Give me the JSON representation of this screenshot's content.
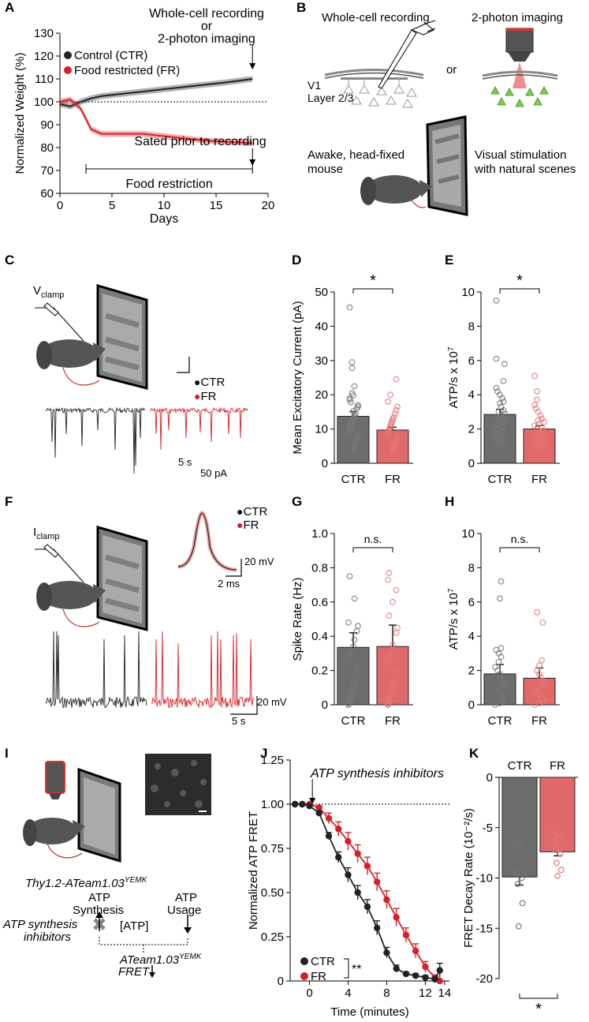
{
  "panels": {
    "A": {
      "label": "A",
      "ylabel": "Normalized Weight (%)",
      "xlabel": "Days",
      "yticks": [
        "60",
        "70",
        "80",
        "90",
        "100",
        "110",
        "120",
        "130"
      ],
      "xticks": [
        "0",
        "5",
        "10",
        "15",
        "20"
      ],
      "legend_ctr": "Control (CTR)",
      "legend_fr": "Food restricted (FR)",
      "annot_top_1": "Whole-cell recording",
      "annot_top_2": "or",
      "annot_top_3": "2-photon imaging",
      "annot_sated": "Sated prior to recording",
      "annot_food": "Food restriction"
    },
    "B": {
      "label": "B",
      "title_left": "Whole-cell recording",
      "title_right": "2-photon imaging",
      "or": "or",
      "v1_1": "V1",
      "v1_2": "Layer 2/3",
      "mouse_1": "Awake, head-fixed",
      "mouse_2": "mouse",
      "vis_1": "Visual stimulation",
      "vis_2": "with natural scenes"
    },
    "C": {
      "label": "C",
      "clamp_main": "V",
      "clamp_sub": "clamp",
      "legend_ctr": "CTR",
      "legend_fr": "FR",
      "scale_time": "5 s",
      "scale_amp": "50 pA"
    },
    "D": {
      "label": "D",
      "ylabel": "Mean Excitatory Current (pA)",
      "yticks": [
        "0",
        "10",
        "20",
        "30",
        "40",
        "50"
      ],
      "sig": "*"
    },
    "E": {
      "label": "E",
      "ylabel_main": "ATP/s x 10",
      "ylabel_exp": "7",
      "yticks": [
        "0",
        "2",
        "4",
        "6",
        "8",
        "10"
      ],
      "sig": "*"
    },
    "F": {
      "label": "F",
      "clamp_main": "I",
      "clamp_sub": "clamp",
      "legend_ctr": "CTR",
      "legend_fr": "FR",
      "scale_amp1": "20 mV",
      "scale_time1": "2 ms",
      "scale_amp2": "20 mV",
      "scale_time2": "5 s"
    },
    "G": {
      "label": "G",
      "ylabel": "Spike Rate (Hz)",
      "yticks": [
        "0",
        "0.2",
        "0.4",
        "0.6",
        "0.8",
        "1.0"
      ],
      "sig": "n.s."
    },
    "H": {
      "label": "H",
      "ylabel_main": "ATP/s x 10",
      "ylabel_exp": "7",
      "yticks": [
        "0",
        "2",
        "4",
        "6",
        "8",
        "10"
      ],
      "sig": "n.s."
    },
    "I": {
      "label": "I",
      "mouse_line": "Thy1.2-ATeam1.03",
      "mouse_line_sup": "YEMK",
      "atp_synth_1": "ATP",
      "atp_synth_2": "Synthesis",
      "atp_usage_1": "ATP",
      "atp_usage_2": "Usage",
      "atp_conc": "[ATP]",
      "inhib_1": "ATP synthesis",
      "inhib_2": "inhibitors",
      "sensor": "ATeam1.03",
      "sensor_sup": "YEMK",
      "fret": "FRET"
    },
    "J": {
      "label": "J",
      "ylabel": "Normalized ATP FRET",
      "xlabel": "Time (minutes)",
      "yticks": [
        "0",
        "0.25",
        "0.50",
        "0.75",
        "1.00",
        "1.25"
      ],
      "xticks": [
        "0",
        "4",
        "8",
        "12",
        "14"
      ],
      "annot": "ATP synthesis inhibitors",
      "legend_ctr": "CTR",
      "legend_fr": "FR",
      "sig": "**"
    },
    "K": {
      "label": "K",
      "ylabel": "FRET Decay Rate (10⁻²/s)",
      "yticks": [
        "0",
        "-5",
        "-10",
        "-15",
        "-20"
      ],
      "sig": "*"
    }
  },
  "colors": {
    "ctr": "#222222",
    "fr": "#d62027",
    "ctr_bar": "#6d6d6d",
    "fr_bar": "#e06a6a"
  },
  "chart_data": [
    {
      "panel": "A",
      "type": "line",
      "xlabel": "Days",
      "ylabel": "Normalized Weight (%)",
      "xlim": [
        0,
        20
      ],
      "ylim": [
        60,
        130
      ],
      "series": [
        {
          "name": "Control (CTR)",
          "x": [
            0,
            1,
            2,
            3,
            4,
            6,
            8,
            10,
            12,
            14,
            16,
            18.5
          ],
          "y": [
            99,
            98,
            100,
            101.5,
            102.5,
            103.5,
            104.5,
            105.5,
            106.5,
            107.5,
            108.5,
            110
          ]
        },
        {
          "name": "Food restricted (FR)",
          "x": [
            0,
            1,
            2,
            3,
            4,
            6,
            8,
            10,
            12,
            14,
            16,
            18.5
          ],
          "y": [
            100,
            101,
            97,
            88,
            86,
            86,
            86,
            85,
            84,
            83,
            82.5,
            82
          ]
        }
      ]
    },
    {
      "panel": "D",
      "type": "bar",
      "ylabel": "Mean Excitatory Current (pA)",
      "categories": [
        "CTR",
        "FR"
      ],
      "values": [
        13.7,
        9.7
      ],
      "errors": [
        1.4,
        0.8
      ],
      "ylim": [
        0,
        50
      ],
      "points": [
        [
          45.5,
          29.5,
          27.8,
          22.5,
          20.5,
          19.8,
          19,
          18.5,
          17.8,
          17,
          16.5,
          16,
          15.2,
          14.5,
          14,
          13.5,
          13,
          12.5,
          12,
          11.5,
          11,
          10.5,
          10,
          9.5,
          9,
          8.5,
          8,
          7.5,
          7,
          6.5,
          6,
          5.5,
          5,
          4.5,
          4
        ],
        [
          24.5,
          20,
          18,
          16.5,
          15.5,
          14.5,
          13.5,
          13,
          12.5,
          12,
          11.5,
          11,
          10.5,
          10,
          9.5,
          9,
          8.5,
          8,
          7.5,
          7,
          6.5,
          6,
          5.5,
          5,
          4.5,
          4,
          3.5
        ]
      ]
    },
    {
      "panel": "E",
      "type": "bar",
      "ylabel": "ATP/s x 10^7",
      "categories": [
        "CTR",
        "FR"
      ],
      "values": [
        2.85,
        2.0
      ],
      "errors": [
        0.3,
        0.2
      ],
      "ylim": [
        0,
        10
      ],
      "points": [
        [
          9.5,
          6.1,
          5.8,
          4.8,
          4.4,
          4.2,
          4.0,
          3.8,
          3.6,
          3.5,
          3.3,
          3.1,
          3.0,
          2.9,
          2.8,
          2.7,
          2.6,
          2.5,
          2.4,
          2.3,
          2.2,
          2.1,
          2.0,
          1.9,
          1.8,
          1.7,
          1.6,
          1.5,
          1.4,
          1.3,
          1.2,
          1.1,
          1.0
        ],
        [
          5.1,
          4.2,
          3.7,
          3.4,
          3.2,
          3.0,
          2.8,
          2.6,
          2.5,
          2.4,
          2.3,
          2.2,
          2.1,
          2.0,
          1.9,
          1.8,
          1.7,
          1.6,
          1.5,
          1.4,
          1.3,
          1.2,
          1.1,
          1.0,
          0.9,
          0.8
        ]
      ]
    },
    {
      "panel": "G",
      "type": "bar",
      "ylabel": "Spike Rate (Hz)",
      "categories": [
        "CTR",
        "FR"
      ],
      "values": [
        0.335,
        0.34
      ],
      "errors": [
        0.085,
        0.125
      ],
      "ylim": [
        0,
        1.0
      ],
      "points": [
        [
          0.75,
          0.62,
          0.48,
          0.46,
          0.43,
          0.38,
          0.34,
          0.3,
          0.28,
          0.25,
          0.22,
          0.2,
          0.18,
          0.15,
          0.12,
          0.1,
          0.08,
          0.05,
          0.03,
          0.02,
          0.01,
          0,
          0
        ],
        [
          0.77,
          0.73,
          0.67,
          0.6,
          0.52,
          0.45,
          0.42,
          0.35,
          0.3,
          0.28,
          0.25,
          0.2,
          0.15,
          0.12,
          0.1,
          0.06,
          0.03,
          0.02,
          0.01,
          0,
          0,
          0
        ]
      ]
    },
    {
      "panel": "H",
      "type": "bar",
      "ylabel": "ATP/s x 10^7",
      "categories": [
        "CTR",
        "FR"
      ],
      "values": [
        1.8,
        1.55
      ],
      "errors": [
        0.55,
        0.6
      ],
      "ylim": [
        0,
        10
      ],
      "points": [
        [
          7.2,
          6.2,
          3.3,
          3.2,
          3.0,
          2.8,
          2.5,
          2.2,
          2.0,
          1.8,
          1.6,
          1.4,
          1.2,
          1.0,
          0.8,
          0.6,
          0.4,
          0.2,
          0.1,
          0
        ],
        [
          5.4,
          4.8,
          2.6,
          2.3,
          2.0,
          1.8,
          1.6,
          1.4,
          1.2,
          1.0,
          0.8,
          0.6,
          0.4,
          0.2,
          0.1,
          0
        ]
      ]
    },
    {
      "panel": "J",
      "type": "line",
      "xlabel": "Time (minutes)",
      "ylabel": "Normalized ATP FRET",
      "xlim": [
        -2,
        14.5
      ],
      "ylim": [
        0,
        1.25
      ],
      "series": [
        {
          "name": "CTR",
          "x": [
            -1.5,
            -0.75,
            0,
            1,
            2,
            3,
            4,
            5,
            6,
            7,
            8,
            9,
            10,
            11,
            12,
            13,
            13.5
          ],
          "y": [
            1.0,
            1.0,
            0.99,
            0.95,
            0.82,
            0.7,
            0.6,
            0.5,
            0.42,
            0.3,
            0.16,
            0.07,
            0.04,
            0.03,
            0.02,
            0.01,
            0.06
          ],
          "err": [
            0,
            0,
            0,
            0.01,
            0.02,
            0.03,
            0.04,
            0.04,
            0.04,
            0.04,
            0.03,
            0.02,
            0.01,
            0.01,
            0.01,
            0.01,
            0.04
          ]
        },
        {
          "name": "FR",
          "x": [
            -1.5,
            -0.75,
            0,
            1,
            2,
            3,
            4,
            5,
            6,
            7,
            8,
            9,
            10,
            11,
            12,
            13,
            13.5
          ],
          "y": [
            1.0,
            1.0,
            1.0,
            0.98,
            0.92,
            0.86,
            0.79,
            0.72,
            0.65,
            0.56,
            0.46,
            0.36,
            0.26,
            0.17,
            0.08,
            0.02,
            0.0
          ],
          "err": [
            0,
            0,
            0,
            0.01,
            0.03,
            0.04,
            0.05,
            0.05,
            0.05,
            0.05,
            0.05,
            0.05,
            0.04,
            0.04,
            0.03,
            0.01,
            0.0
          ]
        }
      ]
    },
    {
      "panel": "K",
      "type": "bar",
      "ylabel": "FRET Decay Rate (10^-2/s)",
      "categories": [
        "CTR",
        "FR"
      ],
      "values": [
        -9.9,
        -7.4
      ],
      "errors": [
        0.8,
        0.4
      ],
      "ylim": [
        -20,
        0
      ],
      "points": [
        [
          -6.5,
          -6.8,
          -9.5,
          -10.0,
          -10.6,
          -12.5,
          -14.8
        ],
        [
          -5.3,
          -6.0,
          -6.5,
          -7.0,
          -7.2,
          -7.6,
          -8.5,
          -9.2,
          -9.8
        ]
      ]
    }
  ]
}
